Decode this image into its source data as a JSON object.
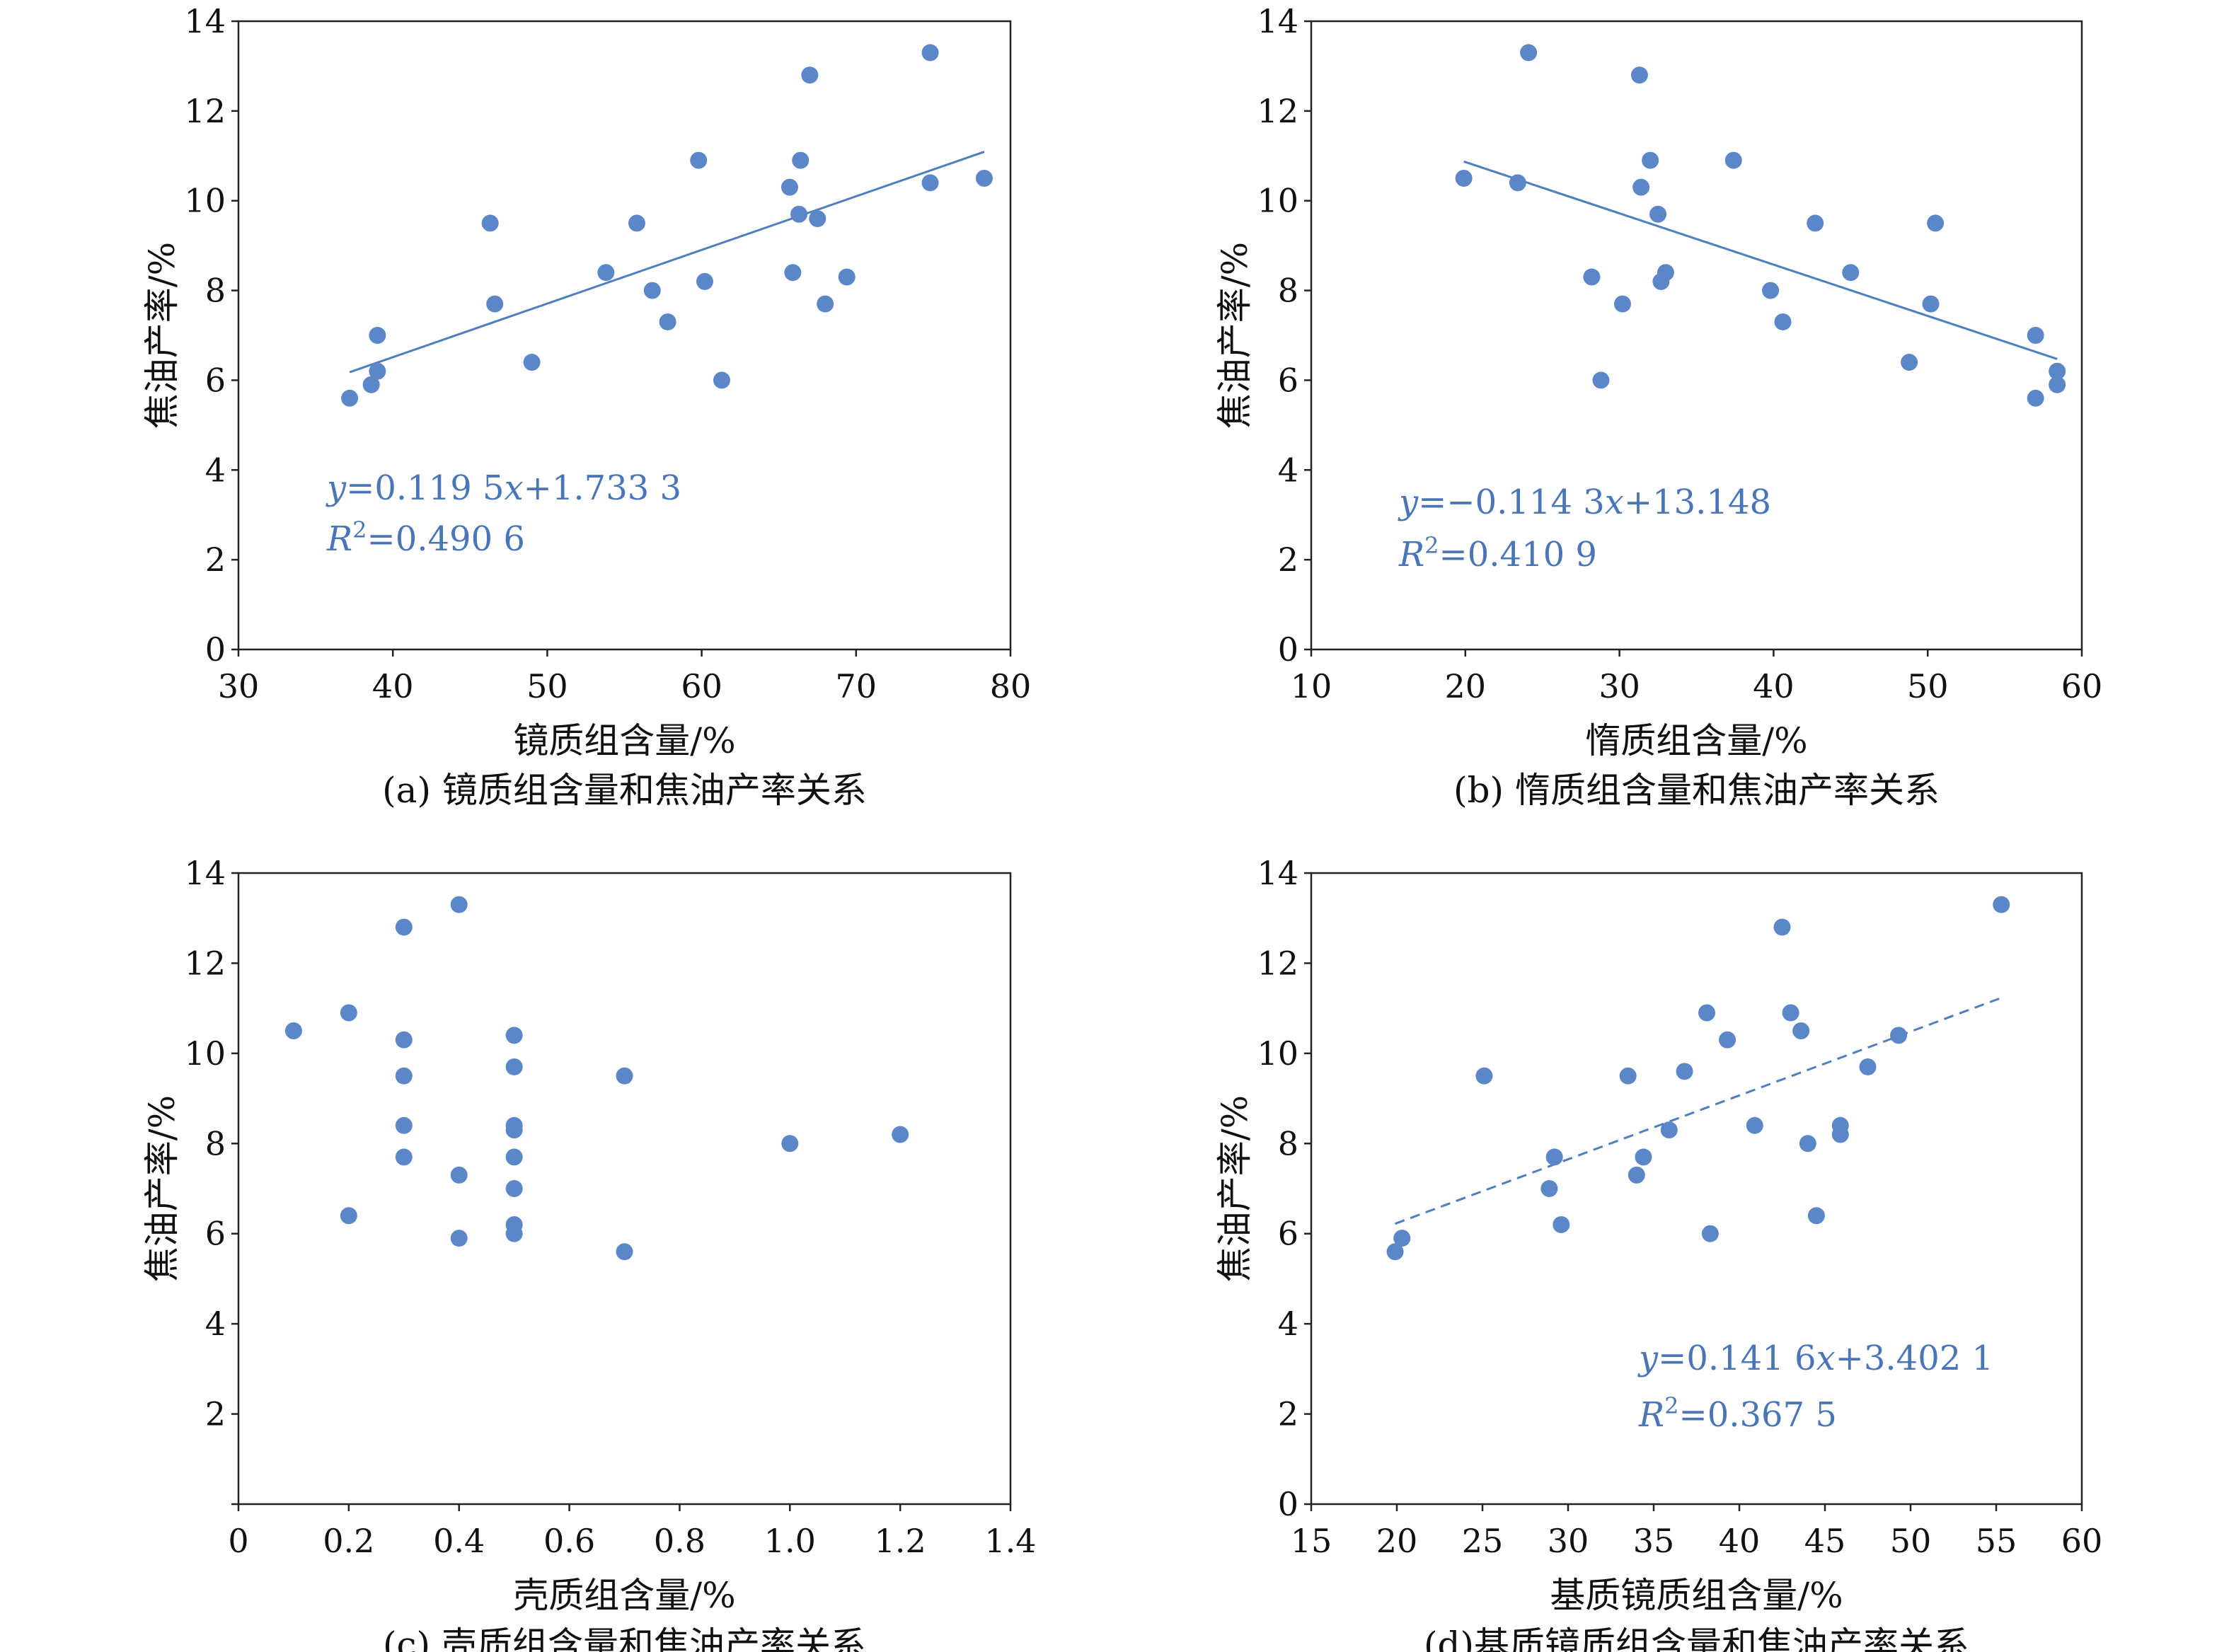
{
  "colors": {
    "marker": "#5B87C8",
    "trend": "#4E7EC0",
    "equation": "#4A76B8",
    "axis": "#222222",
    "text": "#111111"
  },
  "chart_data": [
    {
      "type": "scatter",
      "xlabel": "镜质组含量/%",
      "ylabel": "焦油产率/%",
      "caption": "(a) 镜质组含量和焦油产率关系",
      "xlim": [
        30,
        80
      ],
      "ylim": [
        0,
        14
      ],
      "xticks": [
        30,
        40,
        50,
        60,
        70,
        80
      ],
      "yticks": [
        0,
        2,
        4,
        6,
        8,
        10,
        12,
        14
      ],
      "xtick_labels": [
        "30",
        "40",
        "50",
        "60",
        "70",
        "80"
      ],
      "ytick_labels": [
        "0",
        "2",
        "4",
        "6",
        "8",
        "10",
        "12",
        "14"
      ],
      "points": [
        [
          37.2,
          5.6
        ],
        [
          38.6,
          5.9
        ],
        [
          39.0,
          6.2
        ],
        [
          39.0,
          7.0
        ],
        [
          46.3,
          9.5
        ],
        [
          46.6,
          7.7
        ],
        [
          49.0,
          6.4
        ],
        [
          53.8,
          8.4
        ],
        [
          55.8,
          9.5
        ],
        [
          56.8,
          8.0
        ],
        [
          57.8,
          7.3
        ],
        [
          59.8,
          10.9
        ],
        [
          60.2,
          8.2
        ],
        [
          61.3,
          6.0
        ],
        [
          65.7,
          10.3
        ],
        [
          65.9,
          8.4
        ],
        [
          66.3,
          9.7
        ],
        [
          66.4,
          10.9
        ],
        [
          67.0,
          12.8
        ],
        [
          67.5,
          9.6
        ],
        [
          68.0,
          7.7
        ],
        [
          69.4,
          8.3
        ],
        [
          74.8,
          13.3
        ],
        [
          74.8,
          10.4
        ],
        [
          78.3,
          10.5
        ]
      ],
      "trendline": {
        "style": "solid",
        "x": [
          37.2,
          78.3
        ],
        "slope": 0.1195,
        "intercept": 1.7333
      },
      "equation": {
        "lhs": "y",
        "rhs_a": "=0.119 5",
        "var": "x",
        "rhs_b": "+1.733 3"
      },
      "r2": {
        "lhs": "R",
        "sup": "2",
        "rhs": "=0.490 6"
      }
    },
    {
      "type": "scatter",
      "xlabel": "惰质组含量/%",
      "ylabel": "焦油产率/%",
      "caption": "(b) 惰质组含量和焦油产率关系",
      "xlim": [
        10,
        60
      ],
      "ylim": [
        0,
        14
      ],
      "xticks": [
        10,
        20,
        30,
        40,
        50,
        60
      ],
      "yticks": [
        0,
        2,
        4,
        6,
        8,
        10,
        12,
        14
      ],
      "xtick_labels": [
        "10",
        "20",
        "30",
        "40",
        "50",
        "60"
      ],
      "ytick_labels": [
        "0",
        "2",
        "4",
        "6",
        "8",
        "10",
        "12",
        "14"
      ],
      "points": [
        [
          19.9,
          10.5
        ],
        [
          23.4,
          10.4
        ],
        [
          24.1,
          13.3
        ],
        [
          28.2,
          8.3
        ],
        [
          28.8,
          6.0
        ],
        [
          30.2,
          7.7
        ],
        [
          31.3,
          12.8
        ],
        [
          31.4,
          10.3
        ],
        [
          32.0,
          10.9
        ],
        [
          32.5,
          9.7
        ],
        [
          32.7,
          8.2
        ],
        [
          33.0,
          8.4
        ],
        [
          37.4,
          10.9
        ],
        [
          39.8,
          8.0
        ],
        [
          40.6,
          7.3
        ],
        [
          42.7,
          9.5
        ],
        [
          45.0,
          8.4
        ],
        [
          48.8,
          6.4
        ],
        [
          50.2,
          7.7
        ],
        [
          50.5,
          9.5
        ],
        [
          57.0,
          7.0
        ],
        [
          57.0,
          5.6
        ],
        [
          58.4,
          6.2
        ],
        [
          58.4,
          5.9
        ]
      ],
      "trendline": {
        "style": "solid",
        "x": [
          19.9,
          58.4
        ],
        "slope": -0.1143,
        "intercept": 13.148
      },
      "equation": {
        "lhs": "y",
        "rhs_a": "=−0.114 3",
        "var": "x",
        "rhs_b": "+13.148"
      },
      "r2": {
        "lhs": "R",
        "sup": "2",
        "rhs": "=0.410 9"
      }
    },
    {
      "type": "scatter",
      "xlabel": "壳质组含量/%",
      "ylabel": "焦油产率/%",
      "caption": "(c) 壳质组含量和焦油产率关系",
      "xlim": [
        0,
        1.4
      ],
      "ylim": [
        0,
        14
      ],
      "xticks": [
        0,
        0.2,
        0.4,
        0.6,
        0.8,
        1.0,
        1.2,
        1.4
      ],
      "yticks": [
        0,
        2,
        4,
        6,
        8,
        10,
        12,
        14
      ],
      "xtick_labels": [
        "0",
        "0.2",
        "0.4",
        "0.6",
        "0.8",
        "1.0",
        "1.2",
        "1.4"
      ],
      "ytick_labels": [
        "",
        "2",
        "4",
        "6",
        "8",
        "10",
        "12",
        "14"
      ],
      "points": [
        [
          0.1,
          10.5
        ],
        [
          0.2,
          10.9
        ],
        [
          0.2,
          6.4
        ],
        [
          0.3,
          12.8
        ],
        [
          0.3,
          10.3
        ],
        [
          0.3,
          9.5
        ],
        [
          0.3,
          8.4
        ],
        [
          0.3,
          7.7
        ],
        [
          0.4,
          13.3
        ],
        [
          0.4,
          7.3
        ],
        [
          0.4,
          5.9
        ],
        [
          0.5,
          10.4
        ],
        [
          0.5,
          9.7
        ],
        [
          0.5,
          8.4
        ],
        [
          0.5,
          8.3
        ],
        [
          0.5,
          7.7
        ],
        [
          0.5,
          7.0
        ],
        [
          0.5,
          6.2
        ],
        [
          0.5,
          6.0
        ],
        [
          0.7,
          9.5
        ],
        [
          0.7,
          5.6
        ],
        [
          1.0,
          8.0
        ],
        [
          1.2,
          8.2
        ]
      ],
      "trendline": null,
      "equation": null,
      "r2": null
    },
    {
      "type": "scatter",
      "xlabel": "基质镜质组含量/%",
      "ylabel": "焦油产率/%",
      "caption": "(d)基质镜质组含量和焦油产率关系",
      "xlim": [
        15,
        60
      ],
      "ylim": [
        0,
        14
      ],
      "xticks": [
        15,
        20,
        25,
        30,
        35,
        40,
        45,
        50,
        55,
        60
      ],
      "yticks": [
        0,
        2,
        4,
        6,
        8,
        10,
        12,
        14
      ],
      "xtick_labels": [
        "15",
        "20",
        "25",
        "30",
        "35",
        "40",
        "45",
        "50",
        "55",
        "60"
      ],
      "ytick_labels": [
        "0",
        "2",
        "4",
        "6",
        "8",
        "10",
        "12",
        "14"
      ],
      "points": [
        [
          19.9,
          5.6
        ],
        [
          20.3,
          5.9
        ],
        [
          25.1,
          9.5
        ],
        [
          28.9,
          7.0
        ],
        [
          29.2,
          7.7
        ],
        [
          29.6,
          6.2
        ],
        [
          33.5,
          9.5
        ],
        [
          34.0,
          7.3
        ],
        [
          34.4,
          7.7
        ],
        [
          35.9,
          8.3
        ],
        [
          36.8,
          9.6
        ],
        [
          38.1,
          10.9
        ],
        [
          38.3,
          6.0
        ],
        [
          39.3,
          10.3
        ],
        [
          40.9,
          8.4
        ],
        [
          42.5,
          12.8
        ],
        [
          43.0,
          10.9
        ],
        [
          43.6,
          10.5
        ],
        [
          44.0,
          8.0
        ],
        [
          44.5,
          6.4
        ],
        [
          45.9,
          8.4
        ],
        [
          45.9,
          8.2
        ],
        [
          47.5,
          9.7
        ],
        [
          49.3,
          10.4
        ],
        [
          55.3,
          13.3
        ]
      ],
      "trendline": {
        "style": "dashed",
        "x": [
          19.9,
          55.3
        ],
        "slope": 0.1416,
        "intercept": 3.4021
      },
      "equation": {
        "lhs": "y",
        "rhs_a": "=0.141 6",
        "var": "x",
        "rhs_b": "+3.402 1"
      },
      "r2": {
        "lhs": "R",
        "sup": "2",
        "rhs": "=0.367 5"
      }
    }
  ]
}
